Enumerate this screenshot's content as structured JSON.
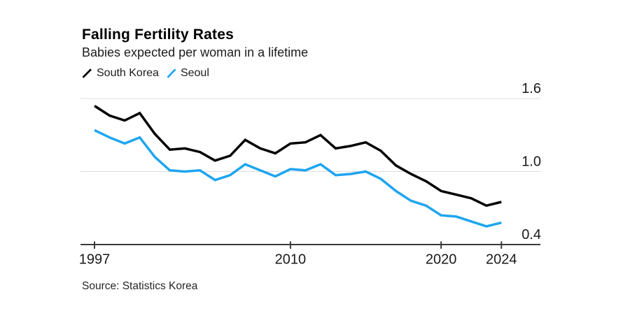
{
  "header": {
    "title": "Falling Fertility Rates",
    "subtitle": "Babies expected per woman in a lifetime"
  },
  "legend": {
    "items": [
      {
        "label": "South Korea",
        "color": "#000000"
      },
      {
        "label": "Seoul",
        "color": "#1ea5f0"
      }
    ]
  },
  "source": "Source: Statistics Korea",
  "axis_style": {
    "axis_color": "#3a3a3a",
    "grid_color": "#dcdcdc",
    "label_color": "#1a1a1a"
  },
  "chart_data": {
    "type": "line",
    "title": "Falling Fertility Rates",
    "subtitle": "Babies expected per woman in a lifetime",
    "x": [
      1997,
      1998,
      1999,
      2000,
      2001,
      2002,
      2003,
      2004,
      2005,
      2006,
      2007,
      2008,
      2009,
      2010,
      2011,
      2012,
      2013,
      2014,
      2015,
      2016,
      2017,
      2018,
      2019,
      2020,
      2021,
      2022,
      2023,
      2024
    ],
    "series": [
      {
        "name": "South Korea",
        "color": "#000000",
        "values": [
          1.54,
          1.46,
          1.42,
          1.48,
          1.31,
          1.18,
          1.19,
          1.16,
          1.09,
          1.13,
          1.26,
          1.19,
          1.15,
          1.23,
          1.24,
          1.3,
          1.19,
          1.21,
          1.24,
          1.17,
          1.05,
          0.98,
          0.92,
          0.84,
          0.81,
          0.78,
          0.72,
          0.75
        ]
      },
      {
        "name": "Seoul",
        "color": "#1ea5f0",
        "values": [
          1.34,
          1.28,
          1.23,
          1.28,
          1.12,
          1.01,
          1.0,
          1.01,
          0.93,
          0.97,
          1.06,
          1.01,
          0.96,
          1.02,
          1.01,
          1.06,
          0.97,
          0.98,
          1.0,
          0.94,
          0.84,
          0.76,
          0.72,
          0.64,
          0.63,
          0.59,
          0.55,
          0.58
        ]
      }
    ],
    "ylim": [
      0.4,
      1.6
    ],
    "yticks": [
      0.4,
      1.0,
      1.6
    ],
    "ytick_labels": [
      "0.4",
      "1.0",
      "1.6"
    ],
    "xticks": [
      1997,
      2010,
      2020,
      2024
    ],
    "xtick_labels": [
      "1997",
      "2010",
      "2020",
      "2024"
    ],
    "grid": "horizontal",
    "y_axis_side": "right",
    "legend_position": "top-left"
  }
}
